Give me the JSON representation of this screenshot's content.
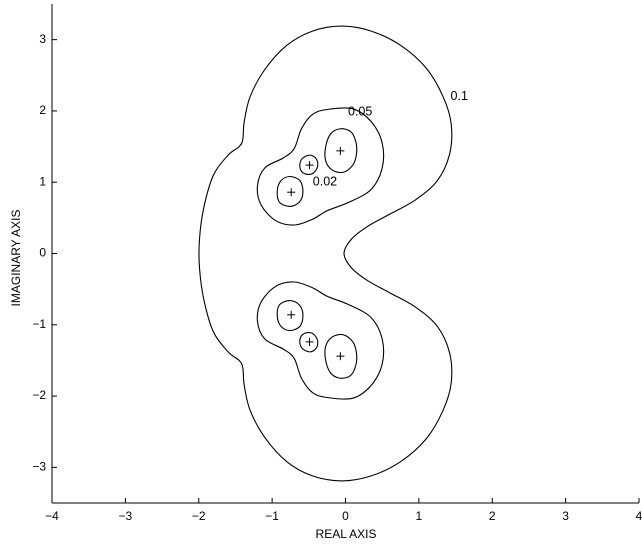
{
  "chart_data": {
    "type": "contour",
    "title": "",
    "xlabel": "REAL AXIS",
    "ylabel": "IMAGINARY AXIS",
    "xlim": [
      -4,
      4
    ],
    "ylim": [
      -3.5,
      3.5
    ],
    "xticks": [
      -4,
      -3,
      -2,
      -1,
      0,
      1,
      2,
      3,
      4
    ],
    "xtick_labels": [
      "−4",
      "−3",
      "−2",
      "−1",
      "0",
      "1",
      "2",
      "3",
      "4"
    ],
    "yticks": [
      -3,
      -2,
      -1,
      0,
      1,
      2,
      3
    ],
    "ytick_labels": [
      "−3",
      "−2",
      "−1",
      "0",
      "1",
      "2",
      "3"
    ],
    "grid": false,
    "box": "left-bottom",
    "markers": {
      "symbol": "+",
      "points": [
        {
          "x": -0.07,
          "y": 1.44
        },
        {
          "x": -0.49,
          "y": 1.24
        },
        {
          "x": -0.74,
          "y": 0.86
        },
        {
          "x": -0.07,
          "y": -1.44
        },
        {
          "x": -0.49,
          "y": -1.24
        },
        {
          "x": -0.74,
          "y": -0.86
        }
      ]
    },
    "contours": [
      {
        "level": "0.1",
        "label": {
          "text": "0.1",
          "x": 1.55,
          "y": 2.2
        },
        "closed": true,
        "points": [
          [
            -0.05,
            3.19
          ],
          [
            0.35,
            3.12
          ],
          [
            0.75,
            2.92
          ],
          [
            1.1,
            2.6
          ],
          [
            1.33,
            2.2
          ],
          [
            1.44,
            1.82
          ],
          [
            1.42,
            1.4
          ],
          [
            1.25,
            1.02
          ],
          [
            0.95,
            0.75
          ],
          [
            0.6,
            0.55
          ],
          [
            0.3,
            0.38
          ],
          [
            0.08,
            0.2
          ],
          [
            -0.02,
            0.0
          ],
          [
            0.08,
            -0.2
          ],
          [
            0.3,
            -0.38
          ],
          [
            0.6,
            -0.55
          ],
          [
            0.95,
            -0.75
          ],
          [
            1.25,
            -1.02
          ],
          [
            1.42,
            -1.4
          ],
          [
            1.44,
            -1.82
          ],
          [
            1.33,
            -2.2
          ],
          [
            1.1,
            -2.6
          ],
          [
            0.75,
            -2.92
          ],
          [
            0.35,
            -3.12
          ],
          [
            -0.05,
            -3.19
          ],
          [
            -0.45,
            -3.12
          ],
          [
            -0.8,
            -2.92
          ],
          [
            -1.1,
            -2.58
          ],
          [
            -1.3,
            -2.2
          ],
          [
            -1.38,
            -1.85
          ],
          [
            -1.4,
            -1.6
          ],
          [
            -1.45,
            -1.5
          ],
          [
            -1.6,
            -1.38
          ],
          [
            -1.8,
            -1.1
          ],
          [
            -1.93,
            -0.65
          ],
          [
            -1.99,
            -0.2
          ],
          [
            -1.99,
            0.2
          ],
          [
            -1.93,
            0.65
          ],
          [
            -1.8,
            1.1
          ],
          [
            -1.6,
            1.38
          ],
          [
            -1.45,
            1.5
          ],
          [
            -1.4,
            1.6
          ],
          [
            -1.38,
            1.85
          ],
          [
            -1.3,
            2.2
          ],
          [
            -1.1,
            2.58
          ],
          [
            -0.8,
            2.92
          ],
          [
            -0.45,
            3.12
          ]
        ]
      },
      {
        "level": "0.05",
        "label": {
          "text": "0.05",
          "x": 0.2,
          "y": 1.98
        },
        "closed": true,
        "points": [
          [
            -0.25,
            2.02
          ],
          [
            0.1,
            2.03
          ],
          [
            0.35,
            1.85
          ],
          [
            0.5,
            1.55
          ],
          [
            0.5,
            1.2
          ],
          [
            0.35,
            0.9
          ],
          [
            0.05,
            0.72
          ],
          [
            -0.25,
            0.6
          ],
          [
            -0.45,
            0.48
          ],
          [
            -0.7,
            0.4
          ],
          [
            -0.95,
            0.46
          ],
          [
            -1.15,
            0.68
          ],
          [
            -1.2,
            0.95
          ],
          [
            -1.1,
            1.2
          ],
          [
            -0.85,
            1.34
          ],
          [
            -0.7,
            1.47
          ],
          [
            -0.6,
            1.75
          ],
          [
            -0.45,
            1.95
          ]
        ]
      },
      {
        "level": "0.05",
        "closed": true,
        "points": [
          [
            -0.25,
            -2.02
          ],
          [
            0.1,
            -2.03
          ],
          [
            0.35,
            -1.85
          ],
          [
            0.5,
            -1.55
          ],
          [
            0.5,
            -1.2
          ],
          [
            0.35,
            -0.9
          ],
          [
            0.05,
            -0.72
          ],
          [
            -0.25,
            -0.6
          ],
          [
            -0.45,
            -0.48
          ],
          [
            -0.7,
            -0.4
          ],
          [
            -0.95,
            -0.46
          ],
          [
            -1.15,
            -0.68
          ],
          [
            -1.2,
            -0.95
          ],
          [
            -1.1,
            -1.2
          ],
          [
            -0.85,
            -1.34
          ],
          [
            -0.7,
            -1.47
          ],
          [
            -0.6,
            -1.75
          ],
          [
            -0.45,
            -1.95
          ]
        ]
      },
      {
        "level": "0.02",
        "label": {
          "text": "0.02",
          "x": -0.28,
          "y": 1.0
        },
        "closed": true,
        "points": [
          [
            -0.07,
            1.75
          ],
          [
            0.07,
            1.71
          ],
          [
            0.14,
            1.57
          ],
          [
            0.15,
            1.4
          ],
          [
            0.1,
            1.24
          ],
          [
            -0.03,
            1.14
          ],
          [
            -0.18,
            1.17
          ],
          [
            -0.27,
            1.3
          ],
          [
            -0.27,
            1.5
          ],
          [
            -0.2,
            1.68
          ]
        ]
      },
      {
        "level": "0.02",
        "closed": true,
        "points": [
          [
            -0.49,
            1.38
          ],
          [
            -0.4,
            1.33
          ],
          [
            -0.38,
            1.22
          ],
          [
            -0.45,
            1.12
          ],
          [
            -0.56,
            1.12
          ],
          [
            -0.62,
            1.2
          ],
          [
            -0.6,
            1.32
          ]
        ]
      },
      {
        "level": "0.02",
        "closed": true,
        "points": [
          [
            -0.76,
            1.08
          ],
          [
            -0.62,
            1.02
          ],
          [
            -0.58,
            0.86
          ],
          [
            -0.63,
            0.72
          ],
          [
            -0.76,
            0.66
          ],
          [
            -0.9,
            0.72
          ],
          [
            -0.93,
            0.88
          ],
          [
            -0.88,
            1.02
          ]
        ]
      },
      {
        "level": "0.02",
        "closed": true,
        "points": [
          [
            -0.07,
            -1.75
          ],
          [
            0.07,
            -1.71
          ],
          [
            0.14,
            -1.57
          ],
          [
            0.15,
            -1.4
          ],
          [
            0.1,
            -1.24
          ],
          [
            -0.03,
            -1.14
          ],
          [
            -0.18,
            -1.17
          ],
          [
            -0.27,
            -1.3
          ],
          [
            -0.27,
            -1.5
          ],
          [
            -0.2,
            -1.68
          ]
        ]
      },
      {
        "level": "0.02",
        "closed": true,
        "points": [
          [
            -0.49,
            -1.38
          ],
          [
            -0.4,
            -1.33
          ],
          [
            -0.38,
            -1.22
          ],
          [
            -0.45,
            -1.12
          ],
          [
            -0.56,
            -1.12
          ],
          [
            -0.62,
            -1.2
          ],
          [
            -0.6,
            -1.32
          ]
        ]
      },
      {
        "level": "0.02",
        "closed": true,
        "points": [
          [
            -0.76,
            -1.08
          ],
          [
            -0.62,
            -1.02
          ],
          [
            -0.58,
            -0.86
          ],
          [
            -0.63,
            -0.72
          ],
          [
            -0.76,
            -0.66
          ],
          [
            -0.9,
            -0.72
          ],
          [
            -0.93,
            -0.88
          ],
          [
            -0.88,
            -1.02
          ]
        ]
      }
    ]
  }
}
